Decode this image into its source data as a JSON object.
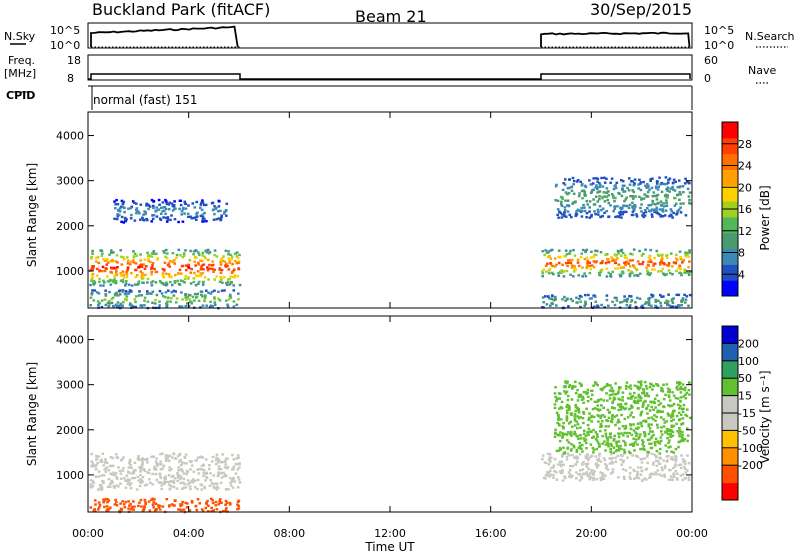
{
  "header": {
    "station": "Buckland Park (fitACF)",
    "beam": "Beam 21",
    "date": "30/Sep/2015"
  },
  "side_labels": {
    "nsky": "N.Sky",
    "freq": "Freq.",
    "mhz": "[MHz]",
    "cpid": "CPID",
    "nsearch": "N.Search",
    "nave": "Nave",
    "nsky_ticks": [
      "10^5",
      "10^0"
    ],
    "freq_ticks": [
      "18",
      "8"
    ],
    "nsearch_ticks": [
      "10^5",
      "10^0"
    ],
    "nave_ticks": [
      "60",
      "0"
    ]
  },
  "cpid_text": "normal (fast) 151",
  "colors": {
    "power": [
      "#0000ff",
      "#2050c0",
      "#3c8ab4",
      "#4a9a70",
      "#50b858",
      "#a0d020",
      "#ffd000",
      "#ffa000",
      "#ff7000",
      "#ff4000",
      "#ff0000"
    ],
    "velocity": [
      "#ff0000",
      "#ff5000",
      "#ff9000",
      "#ffc000",
      "#c8c8c0",
      "#c8c8c0",
      "#60c030",
      "#30a060",
      "#2060b0",
      "#0000d0"
    ]
  },
  "chart_data": [
    {
      "type": "heatmap",
      "title": "Power",
      "ylabel": "Slant Range [km]",
      "xlim": [
        0,
        24
      ],
      "ylim": [
        200,
        4500
      ],
      "yticks": [
        1000,
        2000,
        3000,
        4000
      ],
      "colorbar": {
        "label": "Power [dB]",
        "ticks": [
          4,
          8,
          12,
          16,
          20,
          24,
          28
        ],
        "range": [
          0,
          32
        ]
      },
      "data_gaps_hours": [
        [
          6,
          18
        ]
      ],
      "bands": [
        {
          "t": [
            0.0,
            6.0
          ],
          "range_km": [
            700,
            1500
          ],
          "peak_db": 30
        },
        {
          "t": [
            0.0,
            6.0
          ],
          "range_km": [
            200,
            600
          ],
          "peak_db": 16
        },
        {
          "t": [
            1.0,
            5.5
          ],
          "range_km": [
            2100,
            2600
          ],
          "peak_db": 8
        },
        {
          "t": [
            18.0,
            24.0
          ],
          "range_km": [
            900,
            1500
          ],
          "peak_db": 28
        },
        {
          "t": [
            18.5,
            24.0
          ],
          "range_km": [
            2200,
            3100
          ],
          "peak_db": 12
        },
        {
          "t": [
            18.0,
            24.0
          ],
          "range_km": [
            200,
            500
          ],
          "peak_db": 12
        }
      ]
    },
    {
      "type": "heatmap",
      "title": "Velocity",
      "ylabel": "Slant Range [km]",
      "xlabel": "Time UT",
      "xlim": [
        0,
        24
      ],
      "ylim": [
        200,
        4500
      ],
      "xticks": [
        "00:00",
        "04:00",
        "08:00",
        "12:00",
        "16:00",
        "20:00",
        "00:00"
      ],
      "yticks": [
        1000,
        2000,
        3000,
        4000
      ],
      "colorbar": {
        "label": "Velocity [m s⁻¹]",
        "ticks": [
          200,
          100,
          50,
          15,
          -15,
          -50,
          -100,
          -200
        ]
      },
      "bands": [
        {
          "t": [
            0.0,
            6.0
          ],
          "range_km": [
            700,
            1500
          ],
          "velocity_ms": 0
        },
        {
          "t": [
            0.0,
            6.0
          ],
          "range_km": [
            200,
            500
          ],
          "velocity_ms": -60
        },
        {
          "t": [
            18.0,
            24.0
          ],
          "range_km": [
            900,
            1500
          ],
          "velocity_ms": 0
        },
        {
          "t": [
            18.5,
            24.0
          ],
          "range_km": [
            1500,
            3100
          ],
          "velocity_ms": 40
        }
      ]
    }
  ]
}
